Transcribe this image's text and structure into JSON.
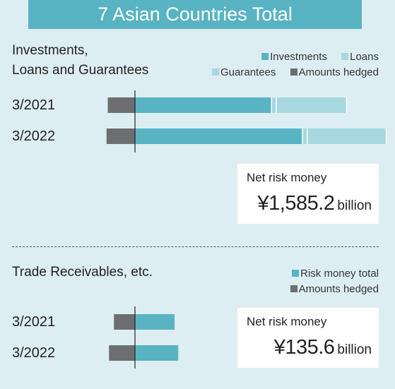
{
  "banner": {
    "title": "7 Asian Countries Total"
  },
  "colors": {
    "investments": "#58b3c3",
    "loans": "#a7d7df",
    "guarantees": "#a7d7df",
    "hedged": "#6d6e70",
    "risk_money_total": "#58b3c3",
    "banner": "#58b3c3"
  },
  "chart_data": [
    {
      "type": "bar",
      "orientation": "horizontal",
      "stacked": true,
      "title_line1": "Investments,",
      "title_line2": "Loans and Guarantees",
      "categories": [
        "3/2021",
        "3/2022"
      ],
      "legend": {
        "investments": "Investments",
        "loans": "Loans",
        "guarantees": "Guarantees",
        "hedged": "Amounts hedged"
      },
      "series": [
        {
          "name": "Investments",
          "key": "investments",
          "values": [
            1100,
            1350
          ]
        },
        {
          "name": "Loans",
          "key": "loans",
          "values": [
            30,
            30
          ]
        },
        {
          "name": "Guarantees",
          "key": "guarantees",
          "values": [
            560,
            630
          ]
        },
        {
          "name": "Amounts hedged",
          "key": "hedged",
          "values": [
            -220,
            -230
          ]
        }
      ],
      "net_risk": {
        "label": "Net risk money",
        "amount": "¥1,585.2",
        "unit": "billion"
      }
    },
    {
      "type": "bar",
      "orientation": "horizontal",
      "stacked": true,
      "title": "Trade Receivables, etc.",
      "categories": [
        "3/2021",
        "3/2022"
      ],
      "legend": {
        "risk_money_total": "Risk money total",
        "hedged": "Amounts hedged"
      },
      "series": [
        {
          "name": "Risk money total",
          "key": "risk_money_total",
          "values": [
            320,
            350
          ]
        },
        {
          "name": "Amounts hedged",
          "key": "hedged",
          "values": [
            -170,
            -210
          ]
        }
      ],
      "net_risk": {
        "label": "Net risk money",
        "amount": "¥135.6",
        "unit": "billion"
      }
    }
  ]
}
